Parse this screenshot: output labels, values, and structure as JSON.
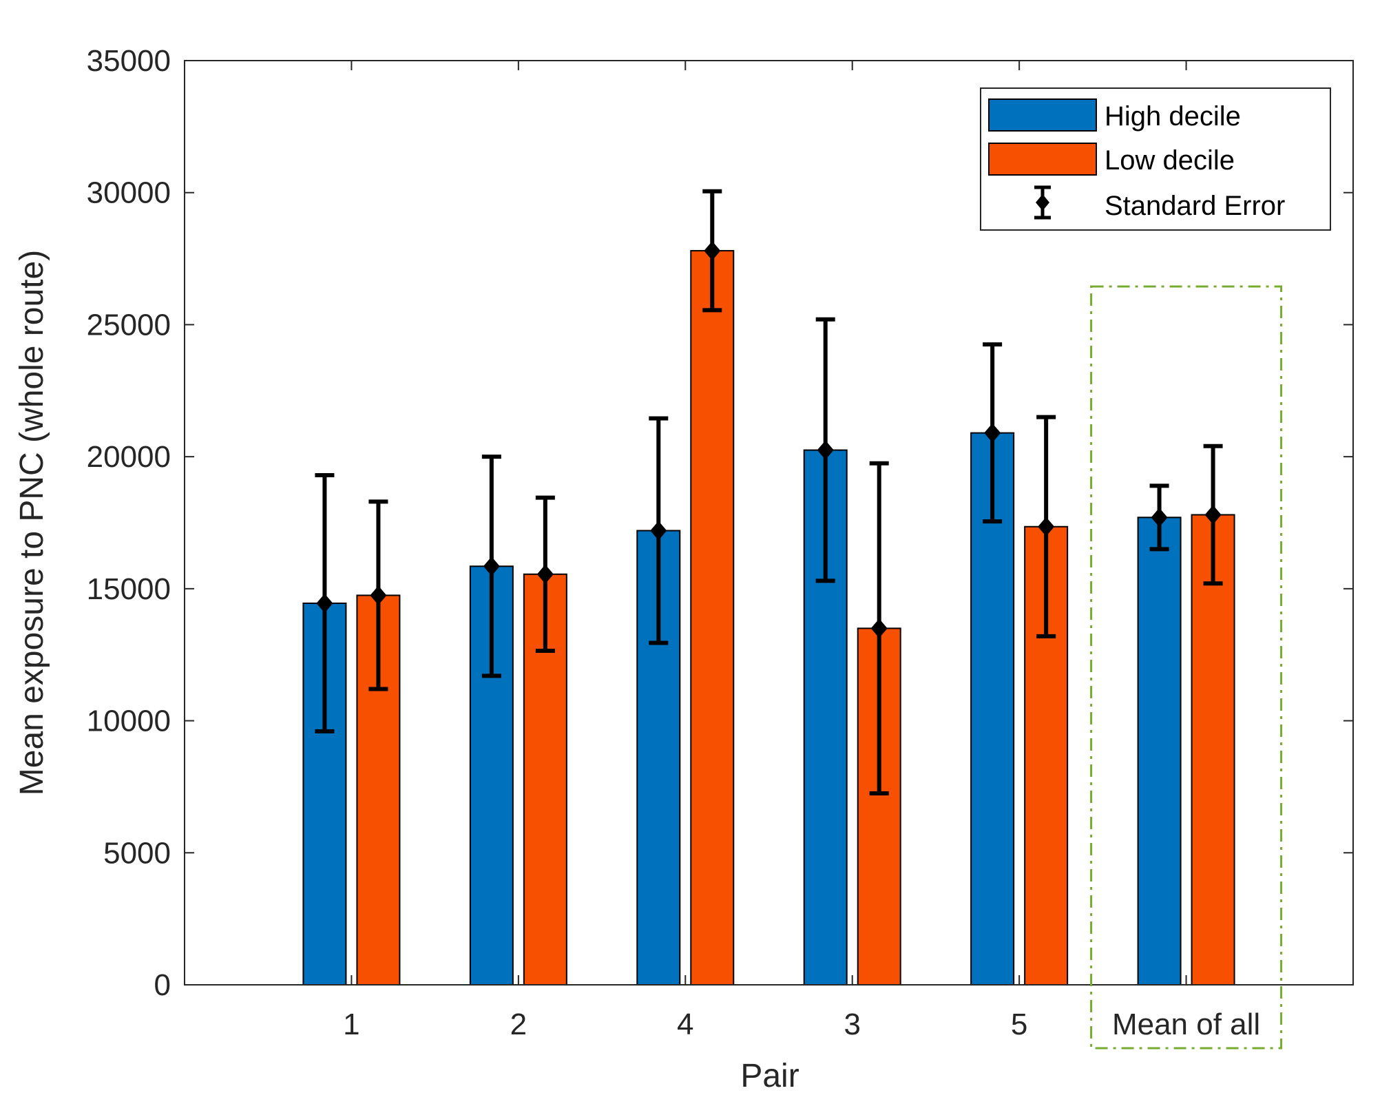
{
  "chart_data": {
    "type": "bar",
    "title": "",
    "xlabel": "Pair",
    "ylabel": "Mean exposure to PNC (whole route)",
    "categories": [
      "1",
      "2",
      "4",
      "3",
      "5",
      "Mean of all"
    ],
    "ylim": [
      0,
      35000
    ],
    "yticks": [
      0,
      5000,
      10000,
      15000,
      20000,
      25000,
      30000,
      35000
    ],
    "grid": false,
    "legend_position": "top-right",
    "series": [
      {
        "name": "High decile",
        "color": "#0072BD",
        "values": [
          14450,
          15850,
          17200,
          20250,
          20900,
          17700
        ],
        "error": [
          4850,
          4150,
          4250,
          4950,
          3350,
          1200
        ]
      },
      {
        "name": "Low decile",
        "color": "#F75000",
        "values": [
          14750,
          15550,
          27800,
          13500,
          17350,
          17800
        ],
        "error": [
          3550,
          2900,
          2250,
          6250,
          4150,
          2600
        ]
      }
    ],
    "error_bar_legend": "Standard Error",
    "highlight_box": {
      "category": "Mean of all",
      "style": "dash-dot",
      "color": "#77AC30"
    }
  }
}
